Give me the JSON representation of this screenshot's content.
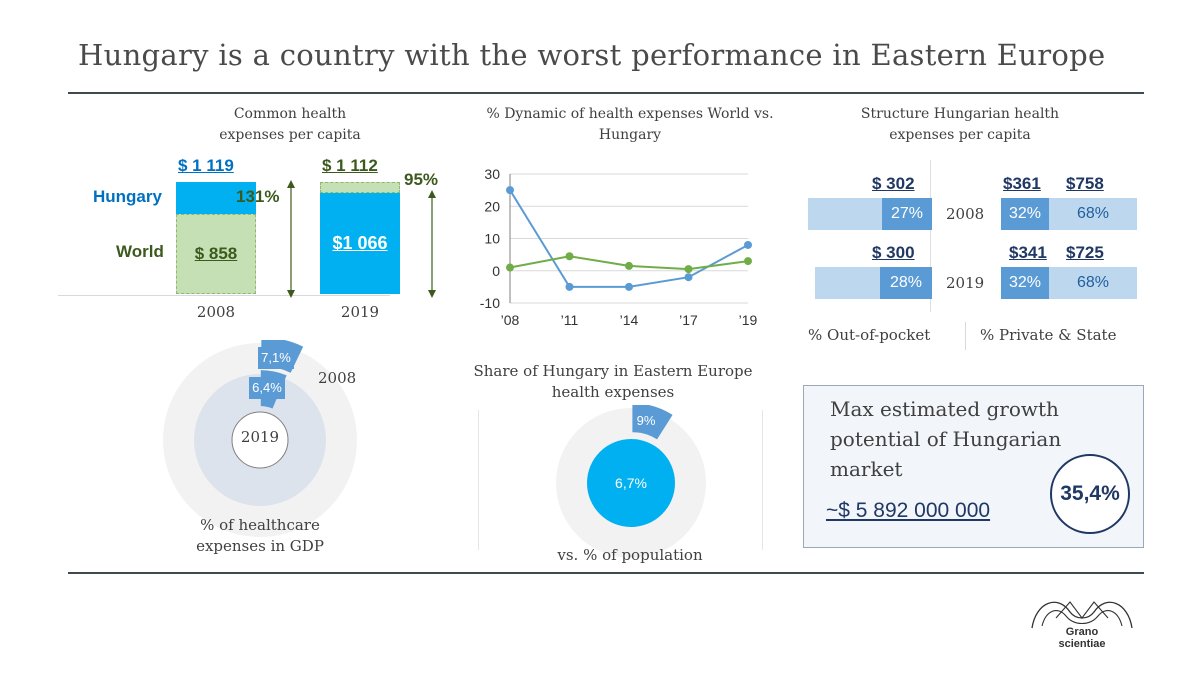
{
  "title": "Hungary is a country with the worst performance in Eastern Europe",
  "colors": {
    "accent_blue": "#00b0f0",
    "world_green": "#c5e0b4",
    "green_text": "#3d5a1e",
    "hungary_blue": "#0070c0",
    "steel_blue": "#5b9bd5",
    "pale_blue": "#bdd7ee",
    "line_green": "#70ad47",
    "navy": "#1f3864"
  },
  "per_capita": {
    "title": "Common health expenses per capita",
    "row_hungary": "Hungary",
    "row_world": "World",
    "y2008": {
      "year": "2008",
      "hungary_total": "$ 1 119",
      "world": "$ 858",
      "ratio": "131%",
      "hungary_value": 1119,
      "world_value": 858
    },
    "y2019": {
      "year": "2019",
      "world_total": "$ 1 112",
      "hungary": "$1 066",
      "ratio": "95%",
      "world_value": 1112,
      "hungary_value": 1066
    }
  },
  "chart_data": {
    "type": "line",
    "title": "% Dynamic of health expenses World vs. Hungary",
    "categories": [
      "’08",
      "’11",
      "’14",
      "’17",
      "’19"
    ],
    "ylim": [
      -10,
      30
    ],
    "yticks": [
      -10,
      0,
      10,
      20,
      30
    ],
    "grid": true,
    "series": [
      {
        "values": [
          25,
          -5,
          -5,
          -2,
          8
        ],
        "color": "#5b9bd5"
      },
      {
        "values": [
          1,
          4.5,
          1.5,
          0.5,
          3
        ],
        "color": "#70ad47"
      }
    ]
  },
  "structure": {
    "title": "Structure Hungarian health expenses per capita",
    "y2008": {
      "year": "2008",
      "oop_amount": "$ 302",
      "oop_pct": "27%",
      "private_amount": "$361",
      "state_amount": "$758",
      "private_pct": "32%",
      "state_pct": "68%"
    },
    "y2019": {
      "year": "2019",
      "oop_amount": "$ 300",
      "oop_pct": "28%",
      "private_amount": "$341",
      "state_amount": "$725",
      "private_pct": "32%",
      "state_pct": "68%"
    },
    "legend_oop": "% Out-of-pocket",
    "legend_private_state": "% Private & State"
  },
  "gdp": {
    "label_2008_value": "7,1%",
    "label_2019_value": "6,4%",
    "year_outer": "2008",
    "year_inner": "2019",
    "caption": "% of healthcare expenses in GDP",
    "outer_pct": 7.1,
    "inner_pct": 6.4
  },
  "share": {
    "title": "Share of Hungary in Eastern Europe health expenses",
    "expenses_pct": "9%",
    "population_pct": "6,7%",
    "caption": "vs. % of population",
    "expenses_value": 9
  },
  "growth": {
    "text": "Max estimated growth potential of Hungarian market",
    "amount": "~$ 5 892 000 000",
    "pct": "35,4%"
  },
  "logo": {
    "line1": "Grano",
    "line2": "scientiae"
  }
}
